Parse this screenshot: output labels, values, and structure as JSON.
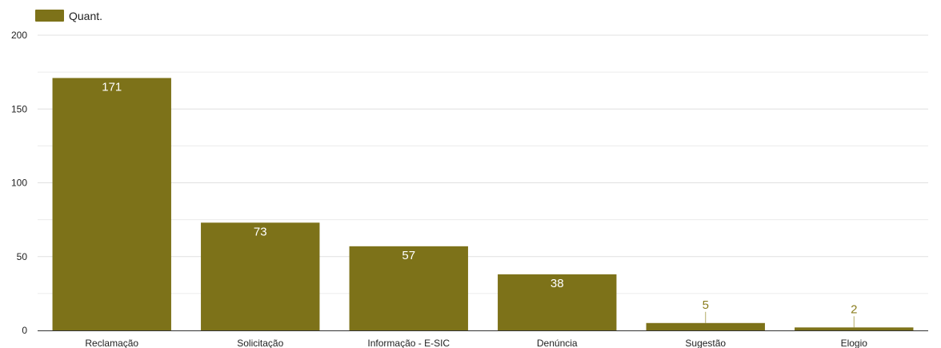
{
  "chart_data": {
    "type": "bar",
    "categories": [
      "Reclamação",
      "Solicitação",
      "Informação - E-SIC",
      "Denúncia",
      "Sugestão",
      "Elogio"
    ],
    "series": [
      {
        "name": "Quant.",
        "values": [
          171,
          73,
          57,
          38,
          5,
          2
        ]
      }
    ],
    "data_labels": [
      "171",
      "73",
      "57",
      "38",
      "5",
      "2"
    ],
    "yticks": [
      0,
      50,
      100,
      150,
      200
    ],
    "ylim": [
      0,
      200
    ],
    "minor_gridlines": true,
    "legend_position": "top-left",
    "colors": {
      "bar": "#7d7219",
      "label_outside": "#8a7d1e",
      "grid": "#e0e0e0",
      "axis": "#333333"
    }
  }
}
